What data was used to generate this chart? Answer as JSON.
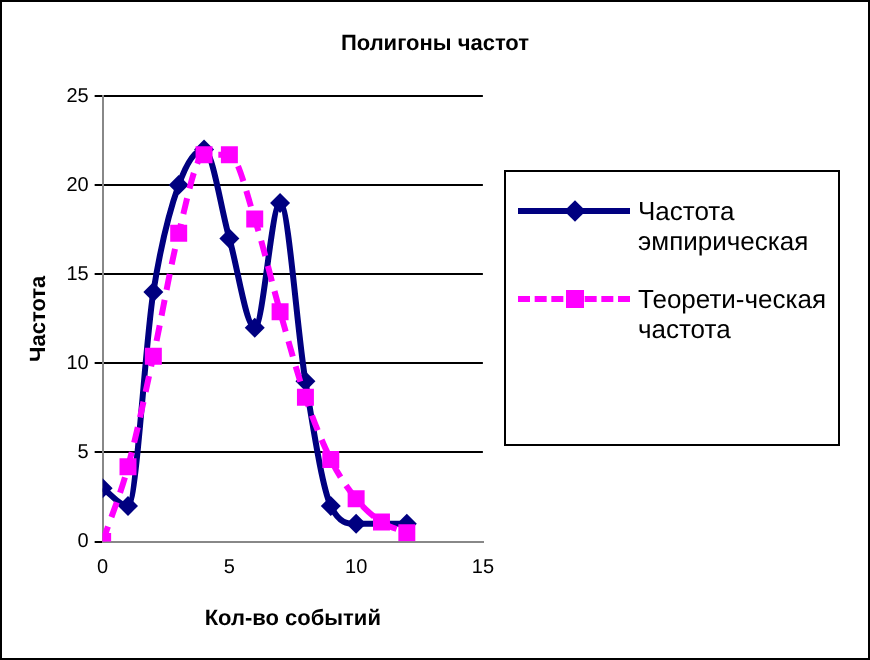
{
  "chart_data": {
    "type": "line",
    "title": "Полигоны частот",
    "xlabel": "Кол-во событий",
    "ylabel": "Частота",
    "x": [
      0,
      1,
      2,
      3,
      4,
      5,
      6,
      7,
      8,
      9,
      10,
      11,
      12
    ],
    "series": [
      {
        "name": "Частота эмпирическая",
        "color": "#000080",
        "values": [
          3,
          2,
          14,
          20,
          22,
          17,
          12,
          19,
          9,
          2,
          1,
          null,
          1
        ],
        "marker": "diamond",
        "line_style": "solid"
      },
      {
        "name": "Теорети-ческая частота",
        "color": "#ff00ff",
        "values": [
          0,
          4.2,
          10.4,
          17.3,
          21.7,
          21.7,
          18.1,
          12.9,
          8.1,
          4.6,
          2.4,
          1.1,
          0.5
        ],
        "marker": "square",
        "line_style": "dashed"
      }
    ],
    "xlim": [
      0,
      15
    ],
    "xticks": [
      0,
      5,
      10,
      15
    ],
    "ylim": [
      0,
      25
    ],
    "yticks": [
      0,
      5,
      10,
      15,
      20,
      25
    ],
    "grid": "y",
    "legend": "right"
  }
}
